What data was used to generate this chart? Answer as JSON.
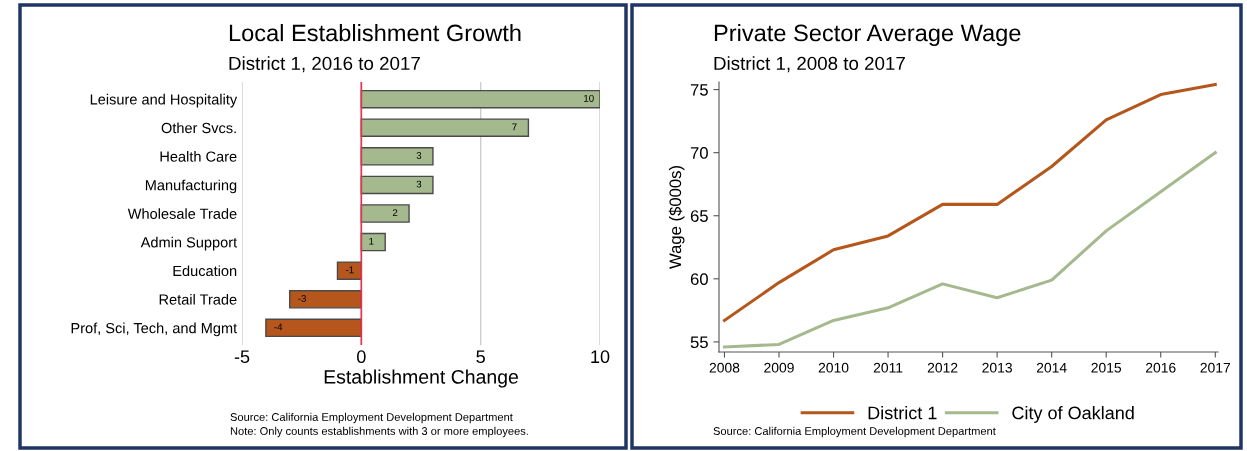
{
  "chart_data": [
    {
      "type": "bar",
      "orientation": "horizontal",
      "title": "Local Establishment Growth",
      "subtitle": "District 1, 2016 to 2017",
      "xlabel": "Establishment Change",
      "categories": [
        "Leisure and Hospitality",
        "Other Svcs.",
        "Health Care",
        "Manufacturing",
        "Wholesale Trade",
        "Admin Support",
        "Education",
        "Retail Trade",
        "Prof, Sci, Tech, and Mgmt"
      ],
      "values": [
        10,
        7,
        3,
        3,
        2,
        1,
        -1,
        -3,
        -4
      ],
      "colors": [
        "#a5b98e",
        "#a5b98e",
        "#a5b98e",
        "#a5b98e",
        "#a5b98e",
        "#a5b98e",
        "#b5561c",
        "#b5561c",
        "#b5561c"
      ],
      "data_labels": true,
      "xlim": [
        -5,
        10
      ],
      "xticks": [
        -5,
        0,
        5,
        10
      ],
      "grid": "x",
      "ref_lines": [
        {
          "axis": "x",
          "value": 0,
          "color": "#e8334a"
        }
      ],
      "annotations": [
        "Source: California Employment Development Department",
        "Note: Only counts establishments with 3 or more employees."
      ]
    },
    {
      "type": "line",
      "title": "Private Sector Average Wage",
      "subtitle": "District 1, 2008 to 2017",
      "ylabel": "Wage ($000s)",
      "categories": [
        "2008",
        "2009",
        "2010",
        "2011",
        "2012",
        "2013",
        "2014",
        "2015",
        "2016",
        "2017"
      ],
      "series": [
        {
          "name": "District 1",
          "color": "#b5561c",
          "values": [
            56.7,
            59.7,
            62.3,
            63.4,
            65.9,
            65.9,
            68.9,
            72.6,
            74.6,
            75.4
          ]
        },
        {
          "name": "City of Oakland",
          "color": "#a5b98e",
          "values": [
            54.6,
            54.8,
            56.7,
            57.7,
            59.6,
            58.5,
            59.9,
            63.8,
            66.9,
            70.0
          ]
        }
      ],
      "ylim": [
        54.2,
        75.6
      ],
      "yticks": [
        55,
        60,
        65,
        70,
        75
      ],
      "legend": "bottom",
      "grid": false,
      "annotations": [
        "Source: California Employment Development Department"
      ]
    }
  ]
}
